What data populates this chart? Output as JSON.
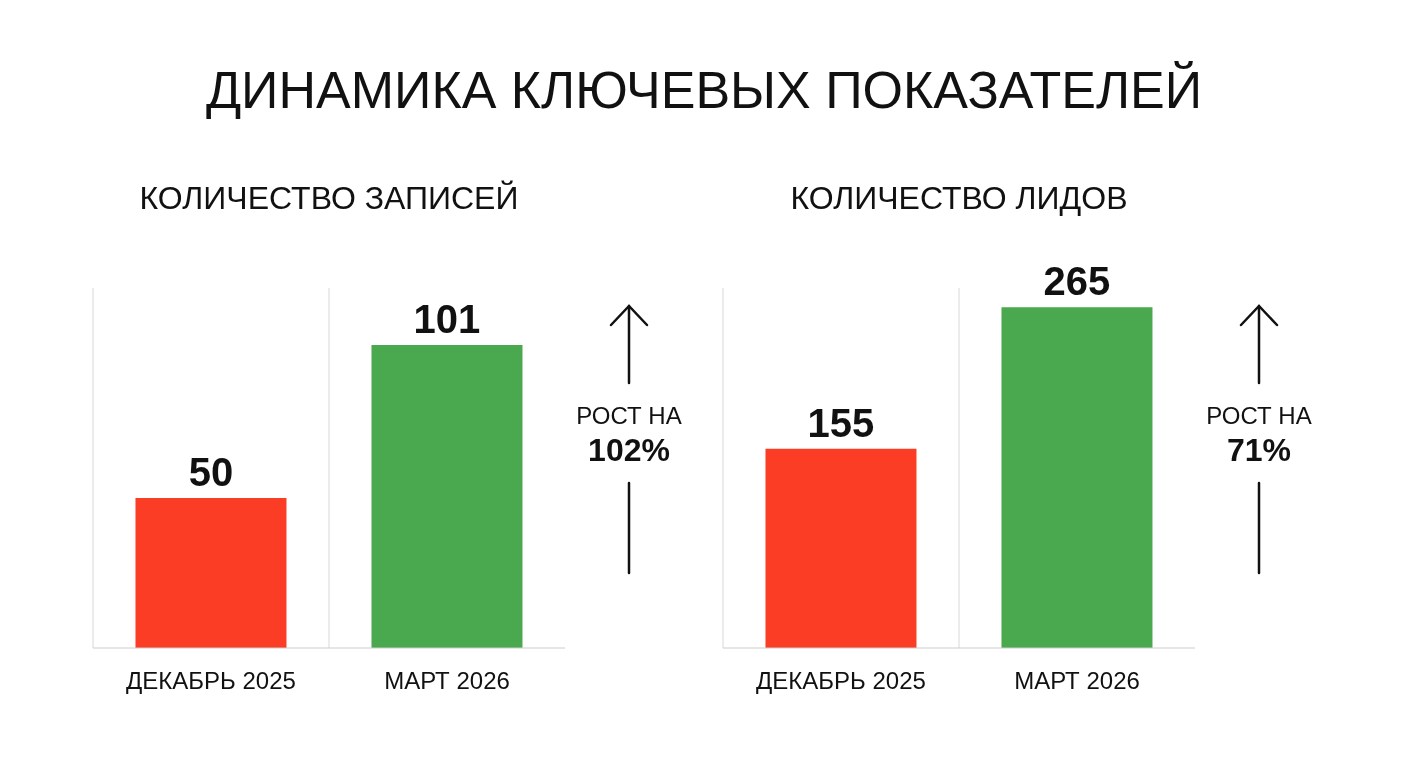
{
  "chart_data": [
    {
      "type": "other",
      "title": "ДИНАМИКА КЛЮЧЕВЫХ ПОКАЗАТЕЛЕЙ"
    },
    {
      "type": "bar",
      "title": "КОЛИЧЕСТВО ЗАПИСЕЙ",
      "categories": [
        "ДЕКАБРЬ 2025",
        "МАРТ 2026"
      ],
      "values": [
        50,
        101
      ],
      "colors": [
        "#fc3d26",
        "#4aa84f"
      ],
      "data_labels": true,
      "grid": "x",
      "annotations": [
        "РОСТ НА",
        "102%"
      ]
    },
    {
      "type": "bar",
      "title": "КОЛИЧЕСТВО ЛИДОВ",
      "categories": [
        "ДЕКАБРЬ 2025",
        "МАРТ 2026"
      ],
      "values": [
        155,
        265
      ],
      "colors": [
        "#fc3d26",
        "#4aa84f"
      ],
      "data_labels": true,
      "grid": "x",
      "annotations": [
        "РОСТ НА",
        "71%"
      ]
    }
  ]
}
